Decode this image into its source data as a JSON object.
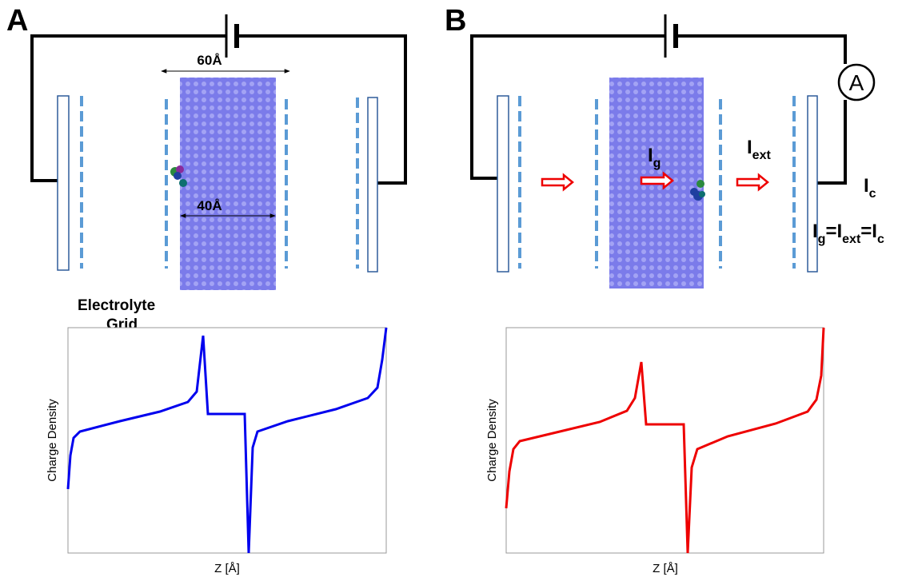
{
  "panel_a": {
    "label": "A",
    "dim_top": "60Å",
    "dim_slab": "40Å",
    "grid_label": [
      "Electrolyte",
      "Grid"
    ],
    "chart": {
      "y_label": "Charge Density",
      "x_label": "Z [Å]"
    }
  },
  "panel_b": {
    "label": "B",
    "ammeter": "A",
    "currents": {
      "g": {
        "main": "I",
        "sub": "g"
      },
      "ext": {
        "main": "I",
        "sub": "ext"
      },
      "c": {
        "main": "I",
        "sub": "c"
      }
    },
    "equation": {
      "terms": [
        {
          "main": "I",
          "sub": "g"
        },
        {
          "main": "I",
          "sub": "ext"
        },
        {
          "main": "I",
          "sub": "c"
        }
      ],
      "operator": "="
    },
    "chart": {
      "y_label": "Charge Density",
      "x_label": "Z [Å]"
    }
  }
}
